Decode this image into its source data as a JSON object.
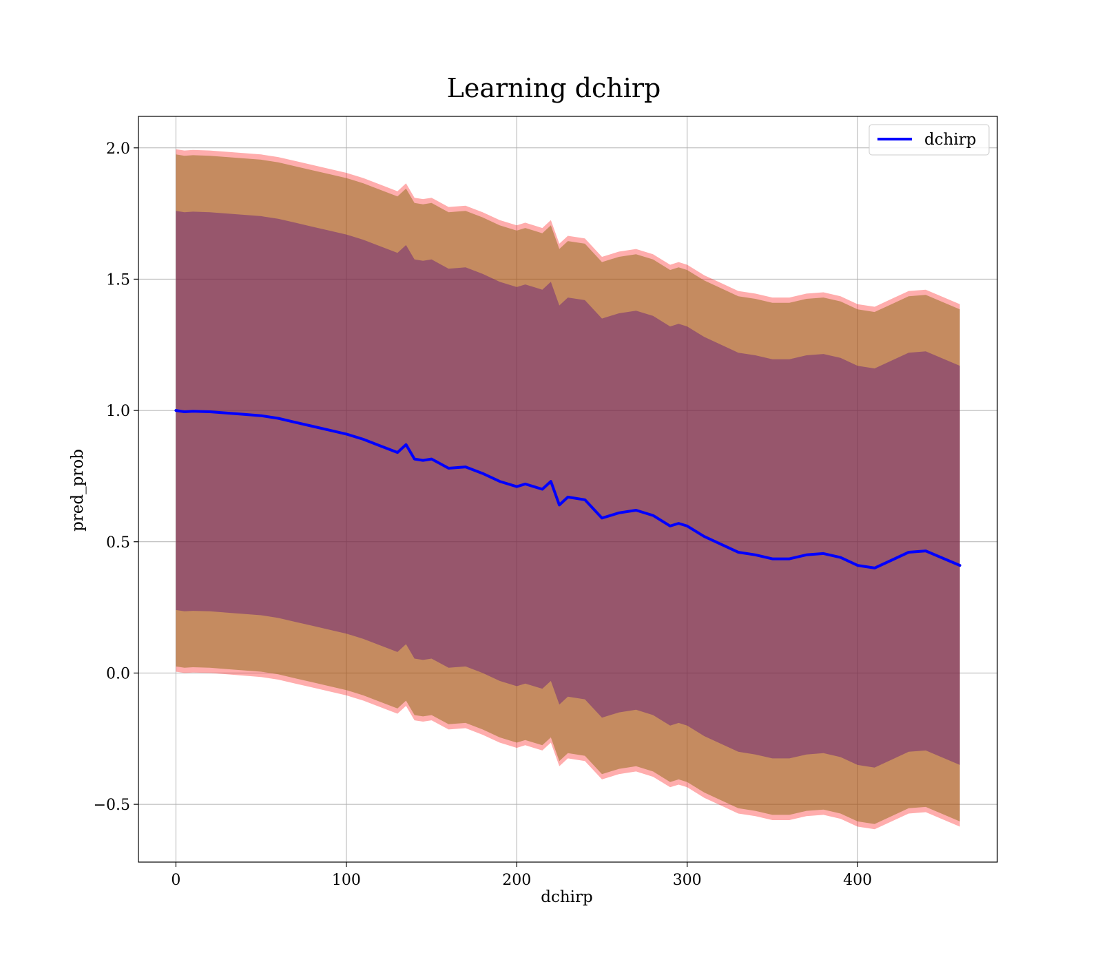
{
  "chart_data": {
    "type": "area",
    "title": "Learning dchirp",
    "xlabel": "dchirp",
    "ylabel": "pred_prob",
    "xlim": [
      -22,
      482
    ],
    "ylim": [
      -0.72,
      2.12
    ],
    "xticks": [
      0,
      100,
      200,
      300,
      400
    ],
    "yticks": [
      -0.5,
      0.0,
      0.5,
      1.0,
      1.5,
      2.0
    ],
    "xtick_labels": [
      "0",
      "100",
      "200",
      "300",
      "400"
    ],
    "ytick_labels": [
      "−0.5",
      "0.0",
      "0.5",
      "1.0",
      "1.5",
      "2.0"
    ],
    "grid": true,
    "legend": {
      "position": "top-right",
      "entries": [
        "dchirp"
      ]
    },
    "colors": {
      "line": "#0000ff",
      "band_outer": "#ff0000",
      "band_2sigma": "#8b6914",
      "band_1sigma": "#4b0082",
      "grid": "#b0b0b0"
    },
    "series": [
      {
        "name": "dchirp",
        "style": "line",
        "x": [
          0,
          5,
          10,
          20,
          30,
          40,
          50,
          60,
          70,
          80,
          90,
          100,
          110,
          120,
          130,
          135,
          140,
          145,
          150,
          160,
          170,
          180,
          190,
          200,
          205,
          210,
          215,
          220,
          225,
          230,
          240,
          250,
          260,
          270,
          280,
          290,
          295,
          300,
          310,
          320,
          330,
          340,
          350,
          360,
          370,
          380,
          390,
          400,
          410,
          420,
          430,
          440,
          460
        ],
        "mean": [
          1.0,
          0.995,
          0.997,
          0.995,
          0.99,
          0.985,
          0.98,
          0.97,
          0.955,
          0.94,
          0.925,
          0.91,
          0.89,
          0.865,
          0.84,
          0.87,
          0.815,
          0.81,
          0.815,
          0.78,
          0.785,
          0.76,
          0.73,
          0.71,
          0.72,
          0.71,
          0.7,
          0.73,
          0.64,
          0.67,
          0.66,
          0.59,
          0.61,
          0.62,
          0.6,
          0.56,
          0.57,
          0.56,
          0.52,
          0.49,
          0.46,
          0.45,
          0.435,
          0.435,
          0.45,
          0.455,
          0.44,
          0.41,
          0.4,
          0.43,
          0.46,
          0.465,
          0.41
        ],
        "band_1sigma_half_width": [
          0.76,
          0.76,
          0.76,
          0.76,
          0.76,
          0.76,
          0.76,
          0.76,
          0.76,
          0.76,
          0.76,
          0.76,
          0.76,
          0.76,
          0.76,
          0.76,
          0.76,
          0.76,
          0.76,
          0.76,
          0.76,
          0.76,
          0.76,
          0.76,
          0.76,
          0.76,
          0.76,
          0.76,
          0.76,
          0.76,
          0.76,
          0.76,
          0.76,
          0.76,
          0.76,
          0.76,
          0.76,
          0.76,
          0.76,
          0.76,
          0.76,
          0.76,
          0.76,
          0.76,
          0.76,
          0.76,
          0.76,
          0.76,
          0.76,
          0.76,
          0.76,
          0.76,
          0.76
        ],
        "band_2sigma_half_width": [
          0.975,
          0.975,
          0.975,
          0.975,
          0.975,
          0.975,
          0.975,
          0.975,
          0.975,
          0.975,
          0.975,
          0.975,
          0.975,
          0.975,
          0.975,
          0.975,
          0.975,
          0.975,
          0.975,
          0.975,
          0.975,
          0.975,
          0.975,
          0.975,
          0.975,
          0.975,
          0.975,
          0.975,
          0.975,
          0.975,
          0.975,
          0.975,
          0.975,
          0.975,
          0.975,
          0.975,
          0.975,
          0.975,
          0.975,
          0.975,
          0.975,
          0.975,
          0.975,
          0.975,
          0.975,
          0.975,
          0.975,
          0.975,
          0.975,
          0.975,
          0.975,
          0.975,
          0.975
        ],
        "band_outer_half_width": [
          0.995,
          0.995,
          0.995,
          0.995,
          0.995,
          0.995,
          0.995,
          0.995,
          0.995,
          0.995,
          0.995,
          0.995,
          0.995,
          0.995,
          0.995,
          0.995,
          0.995,
          0.995,
          0.995,
          0.995,
          0.995,
          0.995,
          0.995,
          0.995,
          0.995,
          0.995,
          0.995,
          0.995,
          0.995,
          0.995,
          0.995,
          0.995,
          0.995,
          0.995,
          0.995,
          0.995,
          0.995,
          0.995,
          0.995,
          0.995,
          0.995,
          0.995,
          0.995,
          0.995,
          0.995,
          0.995,
          0.995,
          0.995,
          0.995,
          0.995,
          0.995,
          0.995,
          0.995
        ]
      }
    ]
  }
}
